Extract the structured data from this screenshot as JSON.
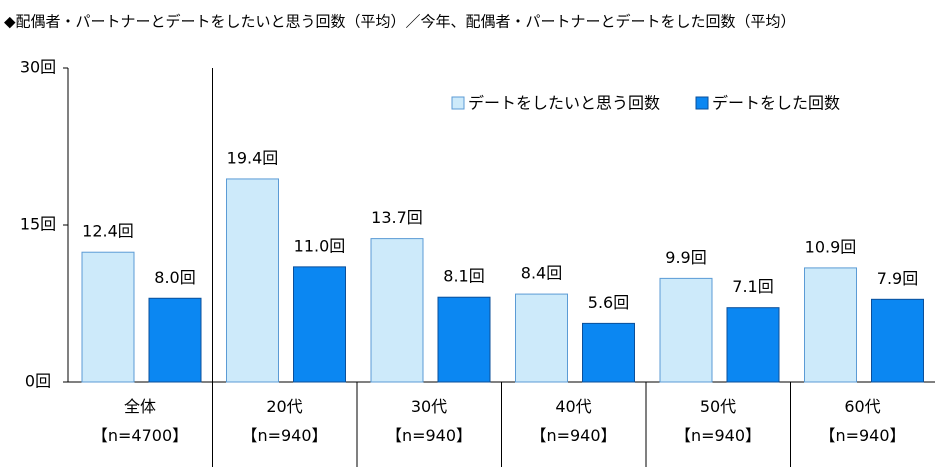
{
  "chart_data": {
    "type": "bar",
    "title": "◆配偶者・パートナーとデートをしたいと思う回数（平均）／今年、配偶者・パートナーとデートをした回数（平均）",
    "categories": [
      "全体\n【n=4700】",
      "20代\n【n=940】",
      "30代\n【n=940】",
      "40代\n【n=940】",
      "50代\n【n=940】",
      "60代\n【n=940】"
    ],
    "series": [
      {
        "name": "デートをしたいと思う回数",
        "color": "#cdeafa",
        "values": [
          12.4,
          19.4,
          13.7,
          8.4,
          9.9,
          10.9
        ],
        "value_labels": [
          "12.4回",
          "19.4回",
          "13.7回",
          "8.4回",
          "9.9回",
          "10.9回"
        ]
      },
      {
        "name": "デートをした回数",
        "color": "#0b87f2",
        "values": [
          8.0,
          11.0,
          8.1,
          5.6,
          7.1,
          7.9
        ],
        "value_labels": [
          "8.0回",
          "11.0回",
          "8.1回",
          "5.6回",
          "7.1回",
          "7.9回"
        ]
      }
    ],
    "ylim": [
      0,
      30
    ],
    "yticks": [
      {
        "value": 0,
        "label": "0回"
      },
      {
        "value": 15,
        "label": "15回"
      },
      {
        "value": 30,
        "label": "30回"
      }
    ],
    "legend": "top-right"
  }
}
